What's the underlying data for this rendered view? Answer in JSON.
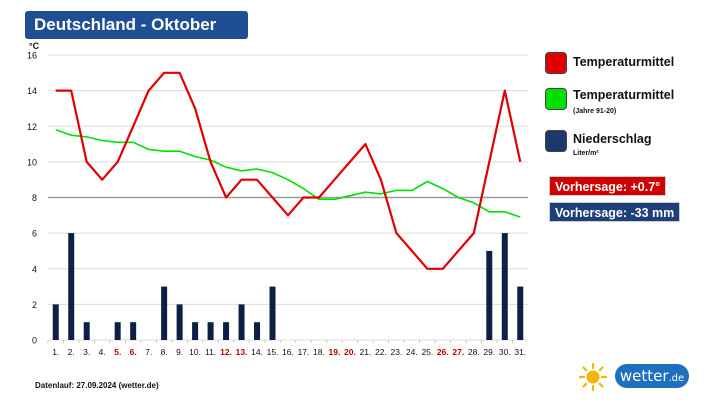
{
  "title": "Deutschland - Oktober",
  "legend": {
    "temp": {
      "label": "Temperaturmittel",
      "color": "#e00000"
    },
    "clim": {
      "label": "Temperaturmittel",
      "sub": "(Jahre 91-20)",
      "color": "#00e000"
    },
    "precip": {
      "label": "Niederschlag",
      "sub": "Liter/m²",
      "color": "#1b3a6b"
    }
  },
  "forecast": {
    "temp": {
      "text": "Vorhersage: +0.7°",
      "color": "#d00000"
    },
    "precip": {
      "text": "Vorhersage: -33 mm",
      "color": "#1f3f7a"
    }
  },
  "footer": "Datenlauf: 27.09.2024 (wetter.de)",
  "logo": {
    "text": "wetter",
    "suffix": ".de",
    "icon": "sun-icon"
  },
  "chart_data": {
    "type": "line+bar",
    "ylabel": "°C",
    "ylim": [
      0,
      16
    ],
    "yticks": [
      0,
      2,
      4,
      6,
      8,
      10,
      12,
      14,
      16
    ],
    "grid": true,
    "gridline_emphasis": 8,
    "categories": [
      "1.",
      "2.",
      "3.",
      "4.",
      "5.",
      "6.",
      "7.",
      "8.",
      "9.",
      "10.",
      "11.",
      "12.",
      "13.",
      "14.",
      "15.",
      "16.",
      "17.",
      "18.",
      "19.",
      "20.",
      "21.",
      "22.",
      "23.",
      "24.",
      "25.",
      "26.",
      "27.",
      "28.",
      "29.",
      "30.",
      "31."
    ],
    "weekend_days": [
      "5.",
      "6.",
      "12.",
      "13.",
      "19.",
      "20.",
      "26.",
      "27."
    ],
    "weekend_color": "#c00000",
    "series": [
      {
        "name": "Temperaturmittel",
        "kind": "line",
        "color": "#e00000",
        "values": [
          14,
          14,
          10,
          9,
          10,
          12,
          14,
          15,
          15,
          13,
          10,
          8,
          9,
          9,
          8,
          7,
          8,
          8,
          9,
          10,
          11,
          9,
          6,
          5,
          4,
          4,
          5,
          6,
          10,
          14,
          10
        ]
      },
      {
        "name": "Temperaturmittel (Jahre 91-20)",
        "kind": "line",
        "color": "#00e000",
        "values": [
          11.8,
          11.5,
          11.4,
          11.2,
          11.1,
          11.1,
          10.7,
          10.6,
          10.6,
          10.3,
          10.1,
          9.7,
          9.5,
          9.6,
          9.4,
          9.0,
          8.5,
          7.9,
          7.9,
          8.1,
          8.3,
          8.2,
          8.4,
          8.4,
          8.9,
          8.5,
          8.0,
          7.7,
          7.2,
          7.2,
          6.9
        ]
      },
      {
        "name": "Niederschlag",
        "kind": "bar",
        "color": "#0d1f45",
        "values": [
          2,
          6,
          1,
          0,
          1,
          1,
          0,
          3,
          2,
          1,
          1,
          1,
          2,
          1,
          3,
          0,
          0,
          0,
          0,
          0,
          0,
          0,
          0,
          0,
          0,
          0,
          0,
          0,
          5,
          6,
          3
        ]
      }
    ]
  }
}
